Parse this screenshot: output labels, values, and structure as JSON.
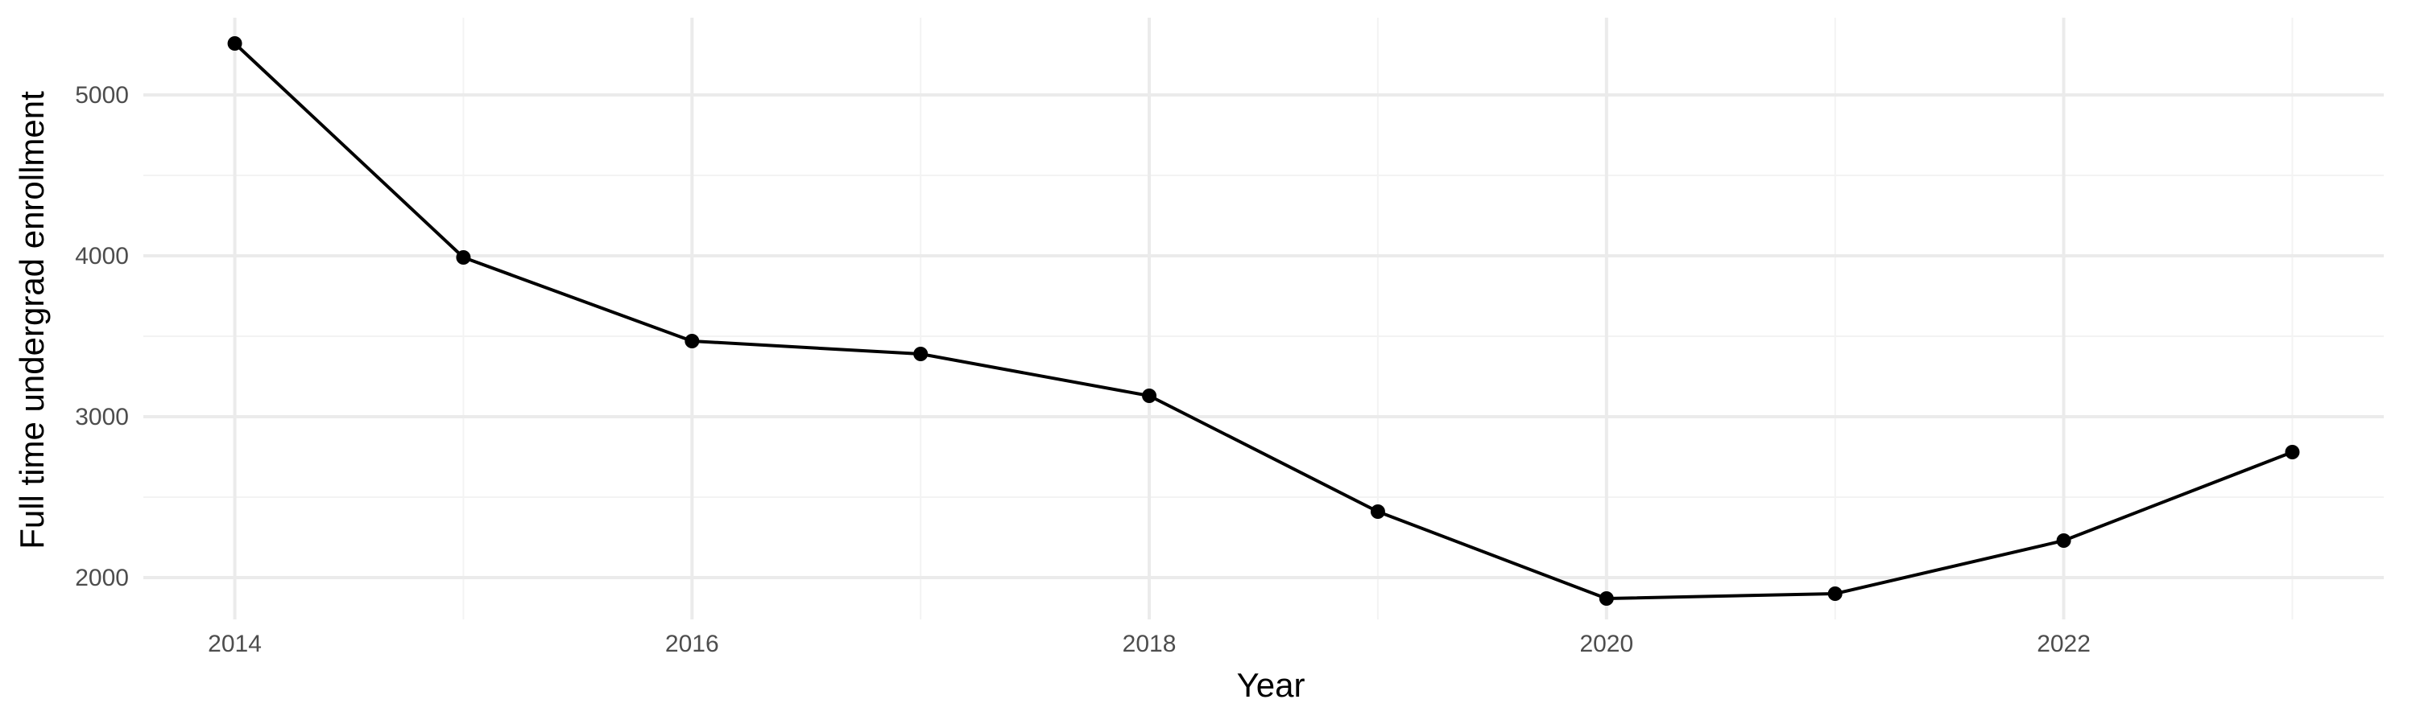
{
  "chart_data": {
    "type": "line",
    "title": "",
    "xlabel": "Year",
    "ylabel": "Full time undergrad enrollment",
    "x": [
      2014,
      2015,
      2016,
      2017,
      2018,
      2019,
      2020,
      2021,
      2022,
      2023
    ],
    "series": [
      {
        "values": [
          5320,
          3990,
          3470,
          3390,
          3130,
          2410,
          1870,
          1900,
          2230,
          2780
        ]
      }
    ],
    "xlim": [
      2013.6,
      2023.4
    ],
    "ylim": [
      1740,
      5480
    ],
    "x_ticks": [
      2014,
      2016,
      2018,
      2020,
      2022
    ],
    "x_tick_labels": [
      "2014",
      "2016",
      "2018",
      "2020",
      "2022"
    ],
    "y_ticks": [
      2000,
      3000,
      4000,
      5000
    ],
    "y_tick_labels": [
      "2000",
      "3000",
      "4000",
      "5000"
    ],
    "grid": true,
    "legend": "none",
    "colors": {
      "line": "#000000",
      "point": "#000000",
      "grid_major": "#ebebeb",
      "grid_minor": "#f3f3f3",
      "tick_label": "#4d4d4d"
    }
  }
}
